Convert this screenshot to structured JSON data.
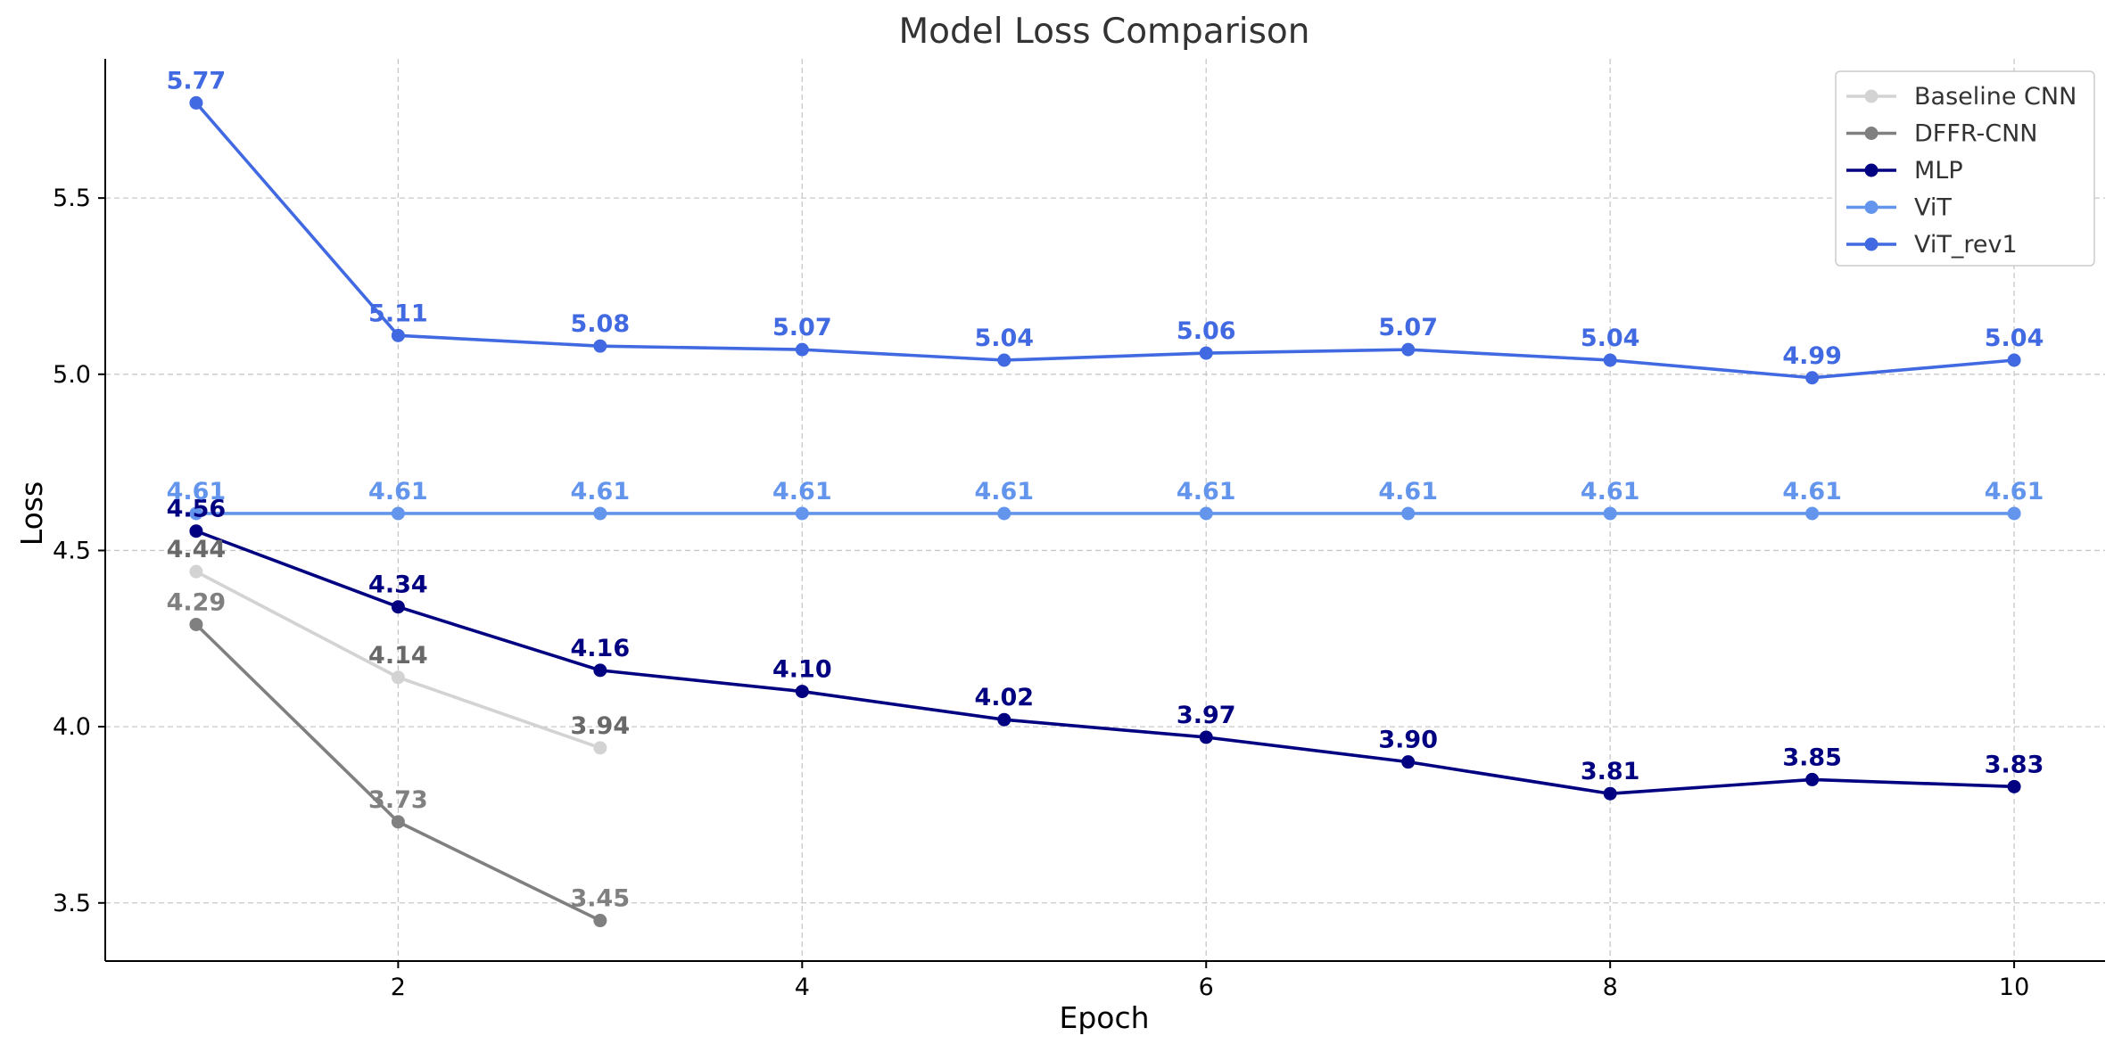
{
  "chart_data": {
    "type": "line",
    "title": "Model Loss Comparison",
    "xlabel": "Epoch",
    "ylabel": "Loss",
    "xlim": [
      0.55,
      10.45
    ],
    "ylim": [
      3.335,
      5.895
    ],
    "xticks": [
      2,
      4,
      6,
      8,
      10
    ],
    "yticks": [
      3.5,
      4.0,
      4.5,
      5.0,
      5.5
    ],
    "xtick_labels": [
      "2",
      "4",
      "6",
      "8",
      "10"
    ],
    "ytick_labels": [
      "3.5",
      "4.0",
      "4.5",
      "5.0",
      "5.5"
    ],
    "grid": true,
    "legend_position": "top-right",
    "series": [
      {
        "name": "Baseline CNN",
        "color": "#d3d3d3",
        "label_color": "#696969",
        "x": [
          1,
          2,
          3
        ],
        "y": [
          4.44,
          4.14,
          3.94
        ],
        "labels": [
          "4.44",
          "4.14",
          "3.94"
        ]
      },
      {
        "name": "DFFR-CNN",
        "color": "#808080",
        "label_color": "#808080",
        "x": [
          1,
          2,
          3
        ],
        "y": [
          4.29,
          3.73,
          3.45
        ],
        "labels": [
          "4.29",
          "3.73",
          "3.45"
        ]
      },
      {
        "name": "MLP",
        "color": "#000080",
        "label_color": "#000080",
        "x": [
          1,
          2,
          3,
          4,
          5,
          6,
          7,
          8,
          9,
          10
        ],
        "y": [
          4.555,
          4.34,
          4.16,
          4.1,
          4.02,
          3.97,
          3.9,
          3.81,
          3.85,
          3.83
        ],
        "labels": [
          "4.56",
          "4.34",
          "4.16",
          "4.10",
          "4.02",
          "3.97",
          "3.90",
          "3.81",
          "3.85",
          "3.83"
        ]
      },
      {
        "name": "ViT",
        "color": "#6495ed",
        "label_color": "#6495ed",
        "x": [
          1,
          2,
          3,
          4,
          5,
          6,
          7,
          8,
          9,
          10
        ],
        "y": [
          4.605,
          4.605,
          4.605,
          4.605,
          4.605,
          4.605,
          4.605,
          4.605,
          4.605,
          4.605
        ],
        "labels": [
          "4.61",
          "4.61",
          "4.61",
          "4.61",
          "4.61",
          "4.61",
          "4.61",
          "4.61",
          "4.61",
          "4.61"
        ]
      },
      {
        "name": "ViT_rev1",
        "color": "#4169e1",
        "label_color": "#4169e1",
        "x": [
          1,
          2,
          3,
          4,
          5,
          6,
          7,
          8,
          9,
          10
        ],
        "y": [
          5.77,
          5.11,
          5.08,
          5.07,
          5.04,
          5.06,
          5.07,
          5.04,
          4.99,
          5.04
        ],
        "labels": [
          "5.77",
          "5.11",
          "5.08",
          "5.07",
          "5.04",
          "5.06",
          "5.07",
          "5.04",
          "4.99",
          "5.04"
        ]
      }
    ]
  }
}
